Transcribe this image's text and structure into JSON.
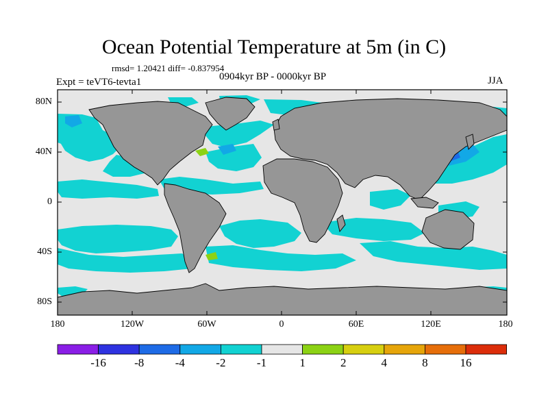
{
  "title": "Ocean Potential Temperature at 5m (in C)",
  "stats_line": "rmsd= 1.20421 diff= -0.837954",
  "period": "0904kyr BP - 0000kyr BP",
  "experiment": "Expt = teVT6-tevta1",
  "season": "JJA",
  "lat_ticks": [
    "80N",
    "40N",
    "0",
    "40S",
    "80S"
  ],
  "lon_ticks": [
    "180",
    "120W",
    "60W",
    "0",
    "60E",
    "120E",
    "180"
  ],
  "colorbar": {
    "labels": [
      "-16",
      "-8",
      "-4",
      "-2",
      "-1",
      "1",
      "2",
      "4",
      "8",
      "16"
    ],
    "colors": [
      "#8a1ee6",
      "#2e32e0",
      "#1e6be6",
      "#12a8e6",
      "#12d2d2",
      "#e6e6e6",
      "#8cd214",
      "#d7cf10",
      "#e6a50a",
      "#e66e0a",
      "#dc2d0a"
    ]
  },
  "colors": {
    "land": "#969696",
    "ocean_neutral": "#e6e6e6",
    "anomaly_main": "#12d2d2",
    "anomaly_medium": "#12a8e6",
    "anomaly_strong": "#1e6be6"
  }
}
